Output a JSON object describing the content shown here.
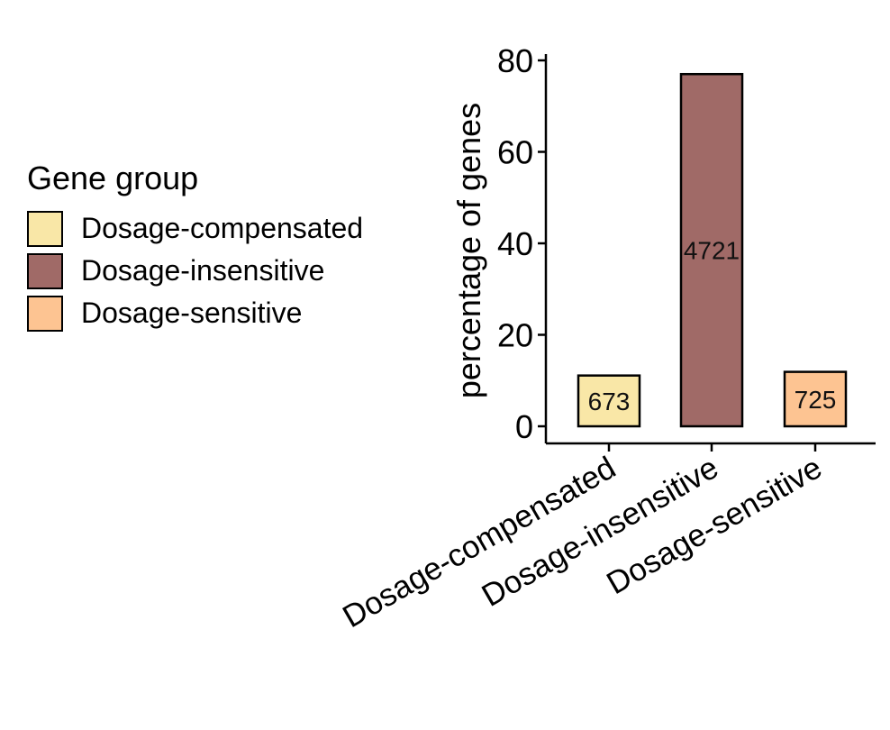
{
  "chart_data": {
    "type": "bar",
    "categories": [
      "Dosage-compensated",
      "Dosage-insensitive",
      "Dosage-sensitive"
    ],
    "values": [
      11.1,
      77.0,
      11.9
    ],
    "data_labels": [
      "673",
      "4721",
      "725"
    ],
    "colors": [
      "#f9e7a7",
      "#a06a67",
      "#fdc492"
    ],
    "ylabel": "percentage of genes",
    "xlabel": "",
    "ylim": [
      0,
      80
    ],
    "yticks": [
      0,
      20,
      40,
      60,
      80
    ],
    "legend": {
      "title": "Gene group",
      "position": "left",
      "entries": [
        "Dosage-compensated",
        "Dosage-insensitive",
        "Dosage-sensitive"
      ]
    },
    "grid": false
  }
}
